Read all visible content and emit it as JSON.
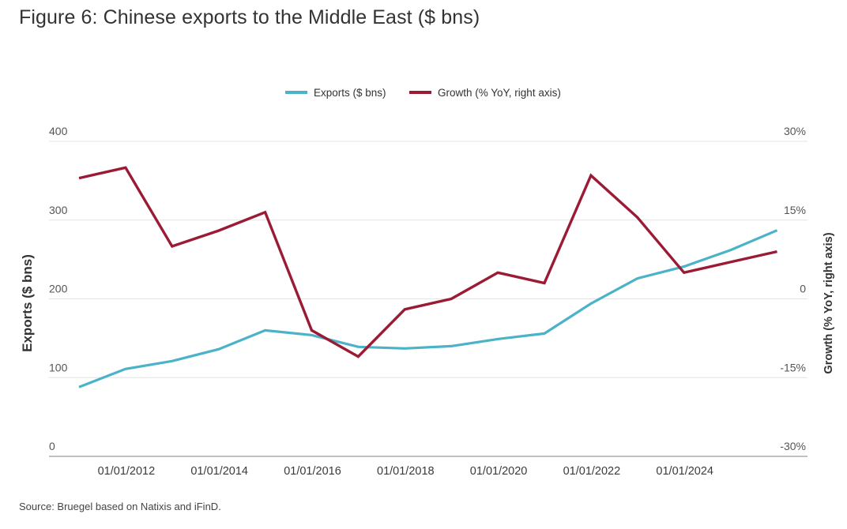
{
  "title": "Figure 6: Chinese exports to the Middle East ($ bns)",
  "source": "Source: Bruegel based on Natixis and iFinD.",
  "chart_data": {
    "type": "line",
    "title": "Figure 6: Chinese exports to the Middle East ($ bns)",
    "ylabel": "Exports ($ bns)",
    "ylabel_right": "Growth (% YoY, right axis)",
    "ylim": [
      0,
      400
    ],
    "ylim_right": [
      -30,
      30
    ],
    "yticks": [
      "0",
      "100",
      "200",
      "300",
      "400"
    ],
    "yticks_right": [
      "-30%",
      "-15%",
      "0",
      "15%",
      "30%"
    ],
    "xticks": [
      "01/01/2012",
      "01/01/2014",
      "01/01/2016",
      "01/01/2018",
      "01/01/2020",
      "01/01/2022",
      "01/01/2024"
    ],
    "x": [
      2011,
      2012,
      2013,
      2014,
      2015,
      2016,
      2017,
      2018,
      2019,
      2020,
      2021,
      2022,
      2023,
      2024,
      2025,
      2026
    ],
    "grid": true,
    "legend": "top-center",
    "series": [
      {
        "name": "Exports ($ bns)",
        "axis": "left",
        "color": "#4bb3c8",
        "values": [
          88,
          111,
          121,
          136,
          160,
          154,
          139,
          137,
          140,
          149,
          156,
          194,
          226,
          241,
          262,
          287
        ]
      },
      {
        "name": "Growth (% YoY, right axis)",
        "axis": "right",
        "color": "#9b1b35",
        "values": [
          23,
          25,
          10,
          13,
          16.5,
          -6,
          -11,
          -2,
          0,
          5,
          3,
          23.5,
          15.5,
          5,
          7,
          9
        ]
      }
    ]
  }
}
